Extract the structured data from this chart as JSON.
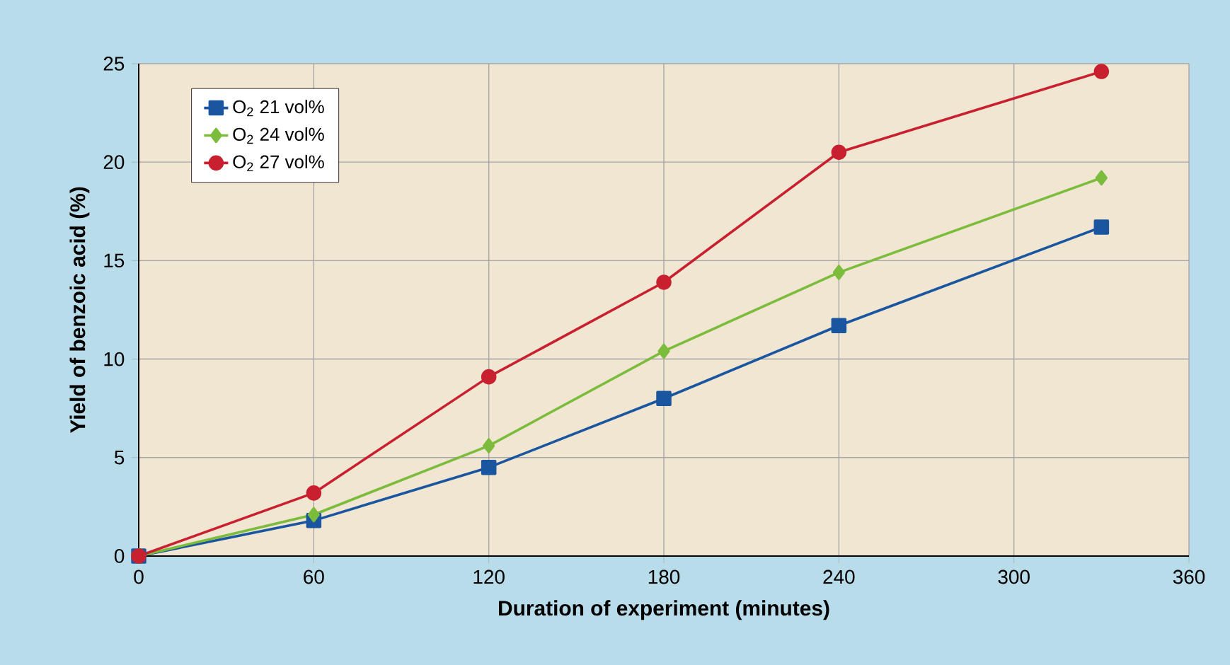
{
  "chart_data": {
    "type": "line",
    "xlabel": "Duration of experiment (minutes)",
    "ylabel": "Yield of benzoic acid (%)",
    "x": [
      0,
      60,
      120,
      180,
      240,
      330
    ],
    "series": [
      {
        "name": "O$_{2}$ 21 vol%",
        "color": "#1a56a0",
        "marker": "square",
        "values": [
          0,
          1.8,
          4.5,
          8.0,
          11.7,
          16.7
        ]
      },
      {
        "name": "O$_{2}$ 24 vol%",
        "color": "#7cbc3c",
        "marker": "diamond",
        "values": [
          0,
          2.1,
          5.6,
          10.4,
          14.4,
          19.2
        ]
      },
      {
        "name": "O$_{2}$ 27 vol%",
        "color": "#c8202f",
        "marker": "circle",
        "values": [
          0,
          3.2,
          9.1,
          13.9,
          20.5,
          24.6
        ]
      }
    ],
    "xlim": [
      0,
      360
    ],
    "xticks": [
      0,
      60,
      120,
      180,
      240,
      300,
      360
    ],
    "ylim": [
      0,
      25
    ],
    "yticks": [
      0,
      5,
      10,
      15,
      20,
      25
    ],
    "grid": true,
    "legend": "top left",
    "line_style": "solid"
  }
}
